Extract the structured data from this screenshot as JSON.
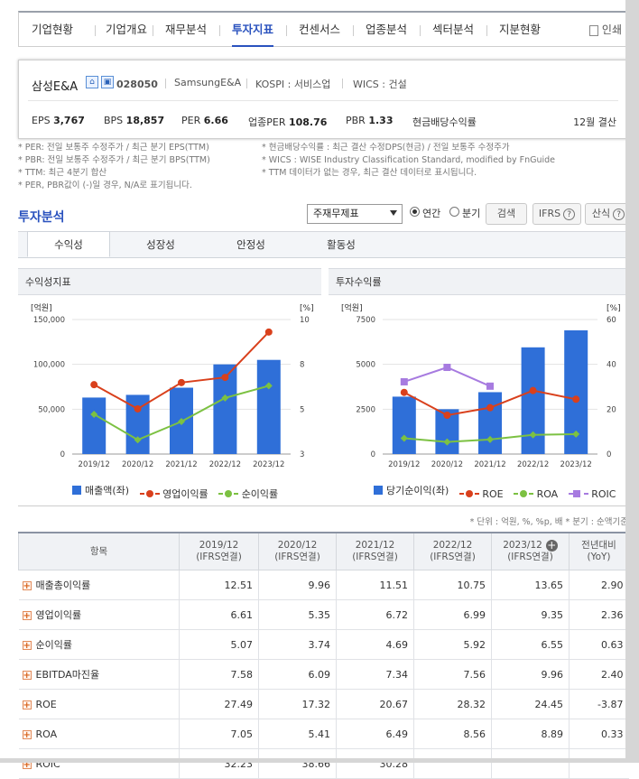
{
  "top_menu": {
    "tabs": [
      "기업현황",
      "기업개요",
      "재무분석",
      "투자지표",
      "컨센서스",
      "업종분석",
      "섹터분석",
      "지분현황"
    ],
    "active_index": 3,
    "print_label": "인쇄"
  },
  "company": {
    "name": "삼성E&A",
    "code": "028050",
    "english_name": "SamsungE&A",
    "market": "KOSPI : 서비스업",
    "wics": "WICS : 건설",
    "stats": [
      {
        "label": "EPS",
        "value": "3,767"
      },
      {
        "label": "BPS",
        "value": "18,857"
      },
      {
        "label": "PER",
        "value": "6.66"
      },
      {
        "label": "업종PER",
        "value": "108.76"
      },
      {
        "label": "PBR",
        "value": "1.33"
      },
      {
        "label": "현금배당수익률",
        "value": ""
      }
    ],
    "settlement": "12월 결산"
  },
  "notes": {
    "left": [
      "* PER: 전일 보통주 수정주가 / 최근 분기 EPS(TTM)",
      "* PBR: 전일 보통주 수정주가 / 최근 분기 BPS(TTM)",
      "* TTM: 최근 4분기 합산",
      "* PER, PBR값이 (-)일 경우, N/A로 표기됩니다."
    ],
    "right": [
      "* 현금배당수익률 : 최근 결산 수정DPS(현금) / 전일 보통주 수정주가",
      "* WICS : WISE Industry Classification Standard, modified by FnGuide",
      "* TTM 데이터가 없는 경우, 최근 결산 데이터로 표시됩니다."
    ]
  },
  "section": {
    "title": "투자분석",
    "select_value": "주재무제표",
    "radio_annual": "연간",
    "radio_quarter": "분기",
    "search_button": "검색",
    "ifrs_button": "IFRS",
    "formula_button": "산식"
  },
  "subtabs": [
    "수익성",
    "성장성",
    "안정성",
    "활동성"
  ],
  "colors": {
    "bar": "#2f6fd8",
    "red": "#d9401c",
    "green": "#7cc142",
    "purple": "#a77be0"
  },
  "chart_data": [
    {
      "type": "bar",
      "title": "수익성지표",
      "categories": [
        "2019/12",
        "2020/12",
        "2021/12",
        "2022/12",
        "2023/12"
      ],
      "left_axis_label": "[억원]",
      "right_axis_label": "[%]",
      "left_ticks": [
        "150,000",
        "100,000",
        "50,000",
        "0"
      ],
      "right_ticks": [
        "10",
        "8",
        "5",
        "3"
      ],
      "ylim": [
        0,
        150000
      ],
      "ylim_right": [
        3,
        10
      ],
      "series": [
        {
          "name": "매출액(좌)",
          "kind": "bar",
          "axis": "left",
          "values": [
            63000,
            66000,
            74000,
            100000,
            105000
          ]
        },
        {
          "name": "영업이익률",
          "kind": "line",
          "axis": "right",
          "values": [
            6.61,
            5.35,
            6.72,
            6.99,
            9.35
          ]
        },
        {
          "name": "순이익률",
          "kind": "line",
          "axis": "right",
          "values": [
            5.07,
            3.74,
            4.69,
            5.92,
            6.55
          ]
        }
      ],
      "legend": "bottom"
    },
    {
      "type": "bar",
      "title": "투자수익률",
      "categories": [
        "2019/12",
        "2020/12",
        "2021/12",
        "2022/12",
        "2023/12"
      ],
      "left_axis_label": "[억원]",
      "right_axis_label": "[%]",
      "left_ticks": [
        "7500",
        "5000",
        "2500",
        "0"
      ],
      "right_ticks": [
        "60",
        "40",
        "20",
        "0"
      ],
      "ylim": [
        0,
        7500
      ],
      "ylim_right": [
        0,
        60
      ],
      "series": [
        {
          "name": "당기순이익(좌)",
          "kind": "bar",
          "axis": "left",
          "values": [
            3200,
            2500,
            3450,
            5950,
            6900
          ]
        },
        {
          "name": "ROE",
          "kind": "line",
          "axis": "right",
          "values": [
            27.49,
            17.32,
            20.67,
            28.32,
            24.45
          ]
        },
        {
          "name": "ROA",
          "kind": "line",
          "axis": "right",
          "values": [
            7.05,
            5.41,
            6.49,
            8.56,
            8.89
          ]
        },
        {
          "name": "ROIC",
          "kind": "line",
          "axis": "right",
          "values": [
            32.23,
            38.66,
            30.28,
            null,
            null
          ]
        }
      ],
      "legend": "bottom"
    }
  ],
  "unit_note": "* 단위 : 억원, %, %p, 배     * 분기 : 순액기준",
  "table": {
    "header_item": "항목",
    "columns": [
      {
        "year": "2019/12",
        "basis": "(IFRS연결)"
      },
      {
        "year": "2020/12",
        "basis": "(IFRS연결)"
      },
      {
        "year": "2021/12",
        "basis": "(IFRS연결)"
      },
      {
        "year": "2022/12",
        "basis": "(IFRS연결)"
      },
      {
        "year": "2023/12",
        "basis": "(IFRS연결)"
      }
    ],
    "yoy_header": "전년대비",
    "yoy_sub": "(YoY)",
    "rows": [
      {
        "label": "매출총이익률",
        "values": [
          "12.51",
          "9.96",
          "11.51",
          "10.75",
          "13.65"
        ],
        "yoy": "2.90"
      },
      {
        "label": "영업이익률",
        "values": [
          "6.61",
          "5.35",
          "6.72",
          "6.99",
          "9.35"
        ],
        "yoy": "2.36"
      },
      {
        "label": "순이익률",
        "values": [
          "5.07",
          "3.74",
          "4.69",
          "5.92",
          "6.55"
        ],
        "yoy": "0.63"
      },
      {
        "label": "EBITDA마진율",
        "values": [
          "7.58",
          "6.09",
          "7.34",
          "7.56",
          "9.96"
        ],
        "yoy": "2.40"
      },
      {
        "label": "ROE",
        "values": [
          "27.49",
          "17.32",
          "20.67",
          "28.32",
          "24.45"
        ],
        "yoy": "-3.87"
      },
      {
        "label": "ROA",
        "values": [
          "7.05",
          "5.41",
          "6.49",
          "8.56",
          "8.89"
        ],
        "yoy": "0.33"
      },
      {
        "label": "ROIC",
        "values": [
          "32.23",
          "38.66",
          "30.28",
          "",
          ""
        ],
        "yoy": ""
      }
    ]
  }
}
